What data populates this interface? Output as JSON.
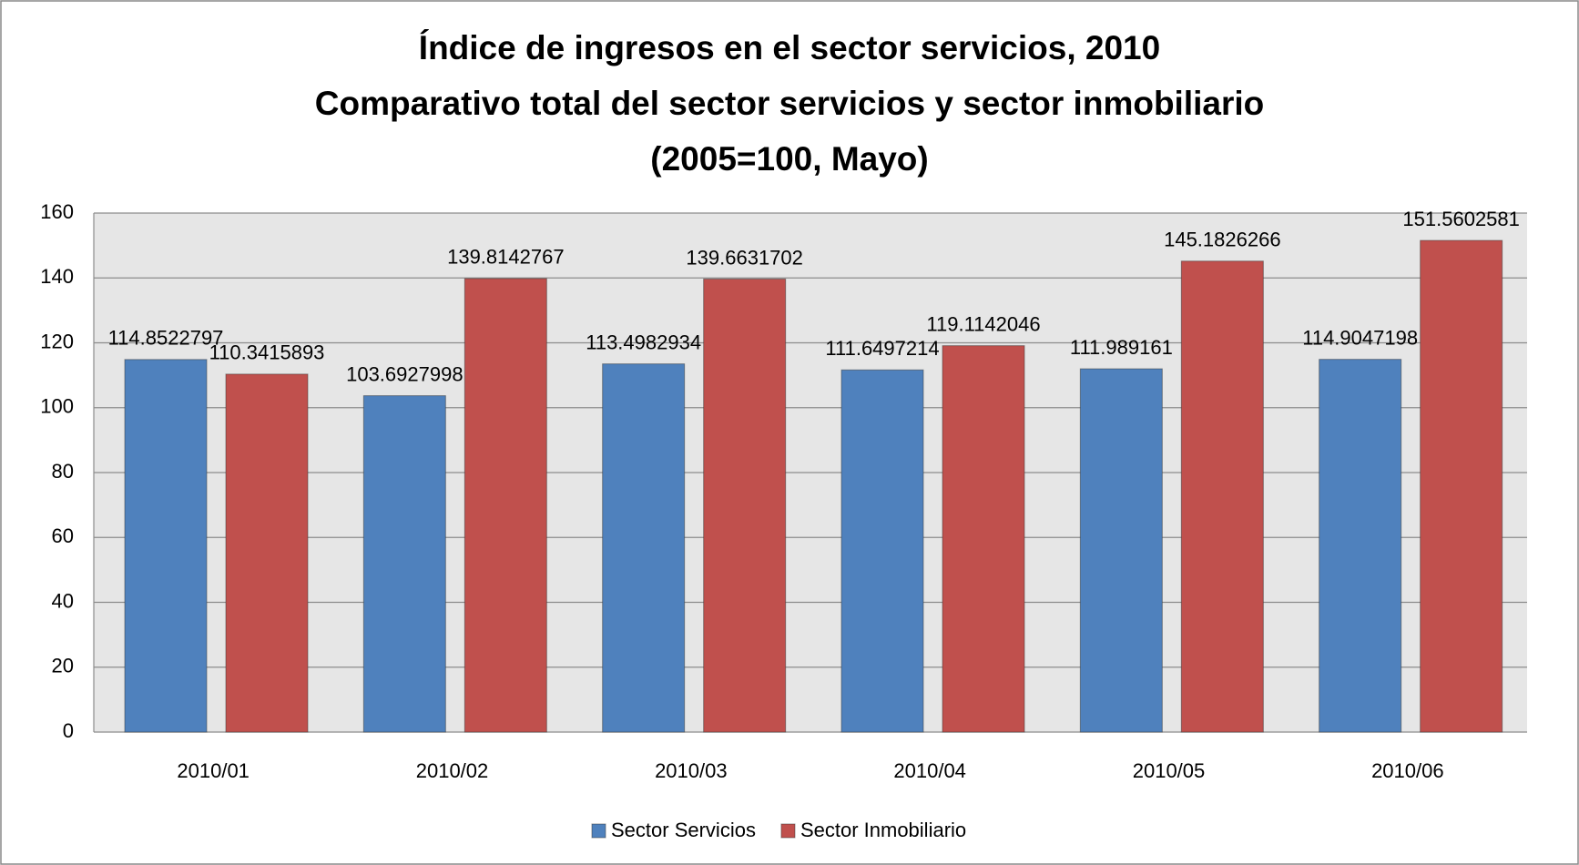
{
  "chart_data": {
    "type": "bar",
    "title": [
      "Índice de ingresos en el sector servicios, 2010",
      "Comparativo total del sector servicios y sector inmobiliario",
      "(2005=100, Mayo)"
    ],
    "categories": [
      "2010/01",
      "2010/02",
      "2010/03",
      "2010/04",
      "2010/05",
      "2010/06"
    ],
    "series": [
      {
        "name": "Sector Servicios",
        "color": "#4f81bd",
        "values": [
          114.8522797,
          103.6927998,
          113.4982934,
          111.6497214,
          111.989161,
          114.9047198
        ]
      },
      {
        "name": "Sector Inmobiliario",
        "color": "#c0504d",
        "values": [
          110.3415893,
          139.8142767,
          139.6631702,
          119.1142046,
          145.1826266,
          151.5602581
        ]
      }
    ],
    "ylim": [
      0,
      160
    ],
    "yticks": [
      0,
      20,
      40,
      60,
      80,
      100,
      120,
      140,
      160
    ],
    "grid": true,
    "legend": "bottom"
  }
}
